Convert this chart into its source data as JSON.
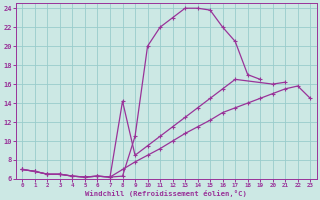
{
  "bg_color": "#cce8e4",
  "grid_color": "#99cccc",
  "line_color": "#993399",
  "xlabel": "Windchill (Refroidissement éolien,°C)",
  "xlabel_color": "#993399",
  "tick_color": "#993399",
  "xlim": [
    -0.5,
    23.5
  ],
  "ylim": [
    6,
    24.5
  ],
  "yticks": [
    6,
    8,
    10,
    12,
    14,
    16,
    18,
    20,
    22,
    24
  ],
  "xticks": [
    0,
    1,
    2,
    3,
    4,
    5,
    6,
    7,
    8,
    9,
    10,
    11,
    12,
    13,
    14,
    15,
    16,
    17,
    18,
    19,
    20,
    21,
    22,
    23
  ],
  "line1_x": [
    0,
    1,
    2,
    3,
    4,
    5,
    6,
    7,
    8,
    9,
    10,
    11,
    12,
    13,
    14,
    15,
    16,
    17,
    18,
    19
  ],
  "line1_y": [
    7.0,
    6.8,
    6.5,
    6.5,
    6.3,
    6.2,
    6.3,
    6.2,
    6.3,
    10.5,
    20.0,
    22.0,
    23.0,
    24.0,
    24.0,
    23.8,
    22.0,
    20.5,
    17.0,
    16.5
  ],
  "line2_x": [
    0,
    1,
    2,
    3,
    4,
    5,
    6,
    7,
    8,
    9,
    10,
    11,
    12,
    13,
    14,
    15,
    16,
    17,
    18,
    19,
    20,
    21
  ],
  "line2_y": [
    7.0,
    6.8,
    6.5,
    6.5,
    6.3,
    6.2,
    6.3,
    6.2,
    14.2,
    8.5,
    9.5,
    10.5,
    11.5,
    12.5,
    13.5,
    14.5,
    15.5,
    16.5,
    null,
    null,
    16.0,
    16.2
  ],
  "line3_x": [
    0,
    1,
    2,
    3,
    4,
    5,
    6,
    7,
    8,
    9,
    10,
    11,
    12,
    13,
    14,
    15,
    16,
    17,
    18,
    19,
    20,
    21,
    22,
    23
  ],
  "line3_y": [
    7.0,
    6.8,
    6.5,
    6.5,
    6.3,
    6.2,
    6.3,
    6.2,
    7.0,
    7.8,
    8.5,
    9.2,
    10.0,
    10.8,
    11.5,
    12.2,
    13.0,
    13.5,
    14.0,
    14.5,
    15.0,
    15.5,
    15.8,
    14.5
  ]
}
